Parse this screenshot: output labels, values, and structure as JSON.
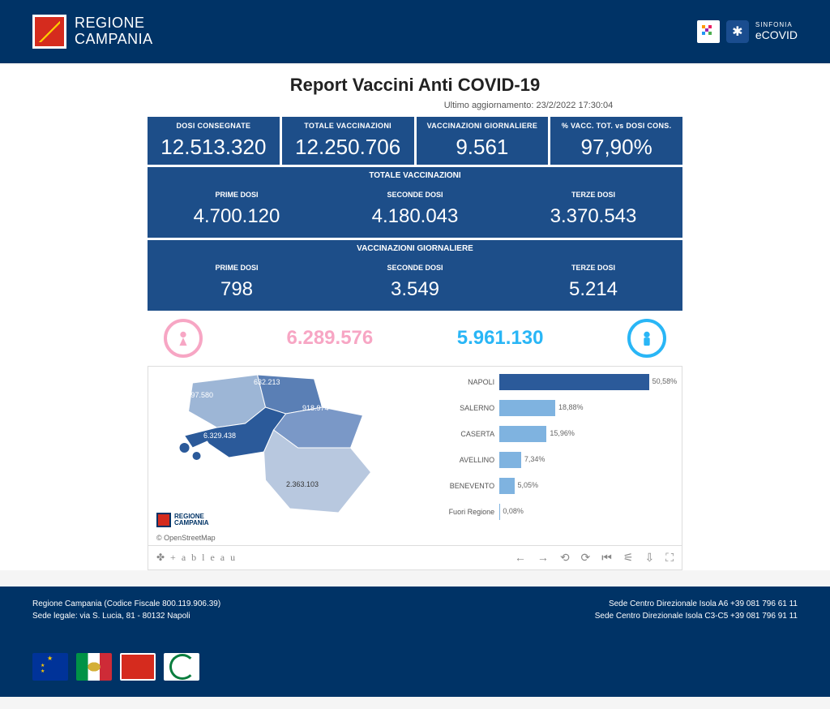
{
  "header": {
    "region_line1": "REGIONE",
    "region_line2": "CAMPANIA",
    "right_label1": "SINFONIA",
    "right_label2": "eCOVID"
  },
  "title": "Report Vaccini Anti COVID-19",
  "update_prefix": "Ultimo aggiornamento:",
  "update_time": "23/2/2022  17:30:04",
  "top_cards": [
    {
      "label": "DOSI  CONSEGNATE",
      "value": "12.513.320"
    },
    {
      "label": "TOTALE VACCINAZIONI",
      "value": "12.250.706"
    },
    {
      "label": "VACCINAZIONI GIORNALIERE",
      "value": "9.561"
    },
    {
      "label": "% VACC. TOT. vs DOSI CONS.",
      "value": "97,90%"
    }
  ],
  "section_totale": {
    "header": "TOTALE VACCINAZIONI",
    "items": [
      {
        "label": "PRIME DOSI",
        "value": "4.700.120"
      },
      {
        "label": "SECONDE DOSI",
        "value": "4.180.043"
      },
      {
        "label": "TERZE DOSI",
        "value": "3.370.543"
      }
    ]
  },
  "section_daily": {
    "header": "VACCINAZIONI GIORNALIERE",
    "items": [
      {
        "label": "PRIME DOSI",
        "value": "798"
      },
      {
        "label": "SECONDE DOSI",
        "value": "3.549"
      },
      {
        "label": "TERZE DOSI",
        "value": "5.214"
      }
    ]
  },
  "gender": {
    "female_value": "6.289.576",
    "male_value": "5.961.130",
    "female_color": "#f7a6c4",
    "male_color": "#29b6f6"
  },
  "map": {
    "attribution": "© OpenStreetMap",
    "logo_l1": "REGIONE",
    "logo_l2": "CAMPANIA",
    "labels": [
      {
        "text": "1.997.580"
      },
      {
        "text": "632.213"
      },
      {
        "text": "918.974"
      },
      {
        "text": "6.329.438"
      },
      {
        "text": "2.363.103"
      }
    ],
    "region_colors": {
      "caserta": "#9db6d6",
      "benevento": "#5a7fb5",
      "avellino": "#7a98c7",
      "napoli": "#2b5a9a",
      "salerno": "#b8c8df"
    }
  },
  "barchart": {
    "type": "bar",
    "max_pct": 60,
    "bar_color_main": "#2b5a9a",
    "bar_color_sub": "#7fb3e0",
    "rows": [
      {
        "label": "NAPOLI",
        "pct": 50.58,
        "display": "50,58%",
        "main": true
      },
      {
        "label": "SALERNO",
        "pct": 18.88,
        "display": "18,88%",
        "main": false
      },
      {
        "label": "CASERTA",
        "pct": 15.96,
        "display": "15,96%",
        "main": false
      },
      {
        "label": "AVELLINO",
        "pct": 7.34,
        "display": "7,34%",
        "main": false
      },
      {
        "label": "BENEVENTO",
        "pct": 5.05,
        "display": "5,05%",
        "main": false
      },
      {
        "label": "Fuori Regione",
        "pct": 0.08,
        "display": "0,08%",
        "main": false
      }
    ]
  },
  "tableau_label": "✤ + a b l e a u",
  "footer": {
    "left_l1": "Regione Campania (Codice Fiscale 800.119.906.39)",
    "left_l2": "Sede legale: via S. Lucia, 81 - 80132 Napoli",
    "right_l1": "Sede Centro Direzionale Isola A6 +39 081 796 61 11",
    "right_l2": "Sede Centro Direzionale Isola C3-C5 +39 081 796 91 11"
  },
  "colors": {
    "header_bg": "#003366",
    "card_bg": "#1d4e89"
  }
}
